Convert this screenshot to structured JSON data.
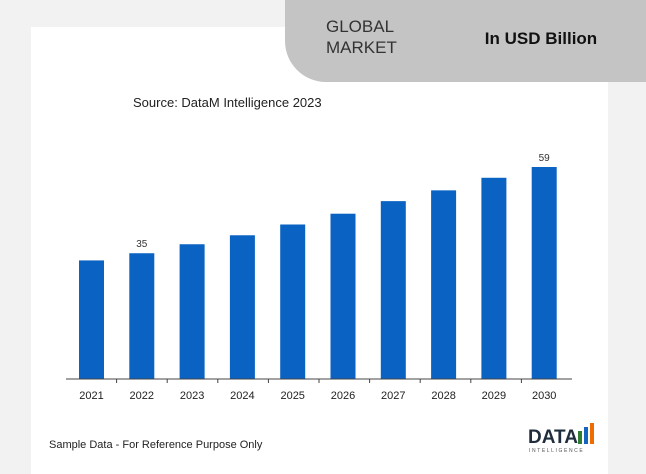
{
  "header": {
    "title": "GLOBAL\nMARKET",
    "unit": "In USD Billion"
  },
  "source": "Source: DataM Intelligence 2023",
  "footer_note": "Sample Data - For Reference Purpose Only",
  "logo": {
    "text": "DATA",
    "subtext": "INTELLIGENCE"
  },
  "colors": {
    "bar": "#0a62c3",
    "header": "#c4c4c4"
  },
  "chart_data": {
    "type": "bar",
    "categories": [
      "2021",
      "2022",
      "2023",
      "2024",
      "2025",
      "2026",
      "2027",
      "2028",
      "2029",
      "2030"
    ],
    "values": [
      33,
      35,
      37.5,
      40,
      43,
      46,
      49.5,
      52.5,
      56,
      59
    ],
    "data_labels": {
      "2022": "35",
      "2030": "59"
    },
    "title": "",
    "xlabel": "",
    "ylabel": "",
    "ylim": [
      0,
      62
    ],
    "grid": false,
    "legend": "none"
  }
}
